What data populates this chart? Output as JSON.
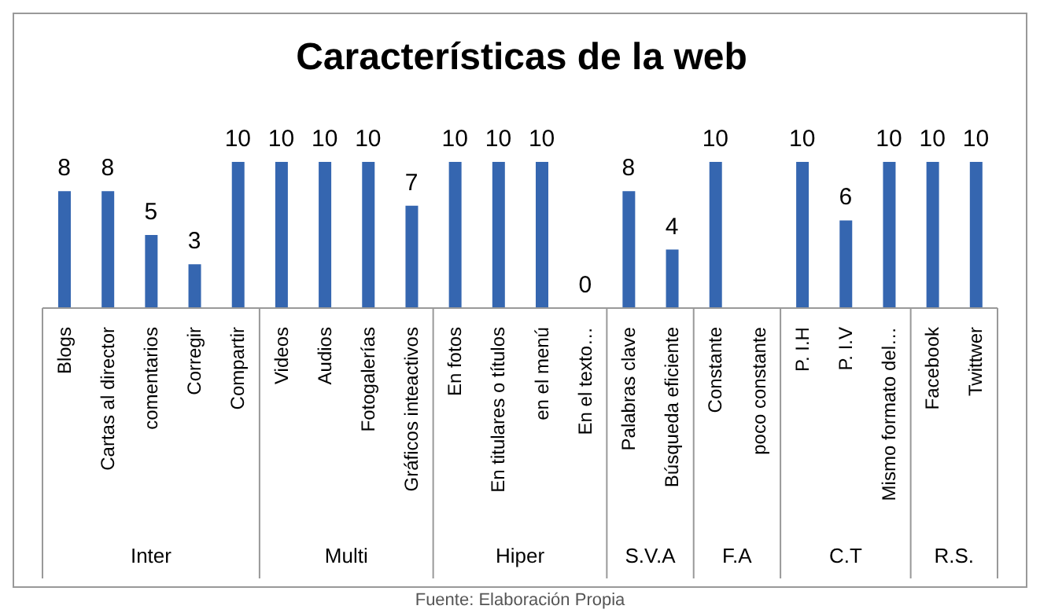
{
  "chart_data": {
    "type": "bar",
    "title": "Características de la web",
    "categories": [
      "Blogs",
      "Cartas al director",
      "comentarios",
      "Corregir",
      "Compartir",
      "Videos",
      "Audios",
      "Fotogalerías",
      "Gráficos inteactivos",
      "En fotos",
      "En titulares o títulos",
      "en el menú",
      "En el texto…",
      "Palabras clave",
      "Búsqueda eficiente",
      "Constante",
      "poco constante",
      "P. I.H",
      "P. I.V",
      "Mismo formato del…",
      "Facebook",
      "Twittwer"
    ],
    "values": [
      8,
      8,
      5,
      3,
      10,
      10,
      10,
      10,
      7,
      10,
      10,
      10,
      0,
      8,
      4,
      10,
      null,
      10,
      6,
      10,
      10,
      10
    ],
    "color": "#3566b0",
    "data_labels": true,
    "annotations": [
      "Inter",
      "Multi",
      "Hiper",
      "S.V.A",
      "F.A",
      "C.T",
      "R.S.",
      "Fuente: Elaboración Propia"
    ]
  }
}
